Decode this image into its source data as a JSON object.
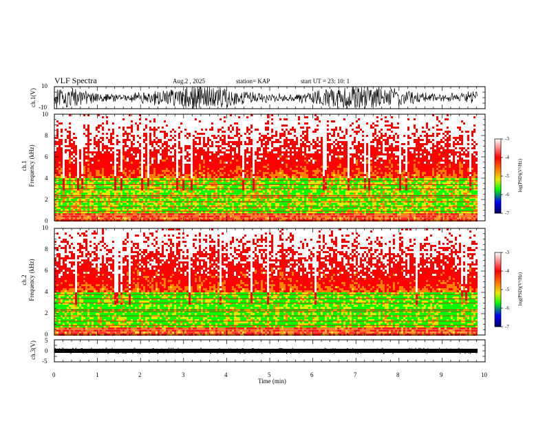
{
  "header": {
    "title": "VLF Spectra",
    "date": "Aug.2  , 2025",
    "station": "station= KAP",
    "start": "start  UT  =   23: 10: 1"
  },
  "chart_data": [
    {
      "type": "line",
      "panel": "ch1-waveform",
      "ylabel": "ch.1(V)",
      "ylim": [
        -10,
        10
      ],
      "yticks": [
        "10",
        "-10"
      ],
      "x_range_min": [
        0,
        10
      ]
    },
    {
      "type": "heatmap",
      "panel": "ch1-spectrogram",
      "ylabel": "ch.1\nFrequency  (kHz)",
      "ylabel_top": "ch.1",
      "ylabel_bottom": "Frequency  (kHz)",
      "ylim": [
        0,
        10
      ],
      "yticks": [
        "0",
        "2",
        "4",
        "6",
        "8",
        "10"
      ],
      "data_x_range_min": [
        0,
        9.85
      ],
      "colorbar": {
        "label": "log(PSD)(V²/Hz)",
        "range": [
          -7,
          -3
        ],
        "ticks": [
          "-3",
          "-4",
          "-5",
          "-6",
          "-7"
        ]
      }
    },
    {
      "type": "heatmap",
      "panel": "ch2-spectrogram",
      "ylabel_top": "ch.2",
      "ylabel_bottom": "Frequency  (kHz)",
      "ylim": [
        0,
        10
      ],
      "yticks": [
        "0",
        "2",
        "4",
        "6",
        "8",
        "10"
      ],
      "data_x_range_min": [
        0,
        9.85
      ],
      "colorbar": {
        "label": "log(PSD)(V²/Hz)",
        "range": [
          -7,
          -3
        ],
        "ticks": [
          "-3",
          "-4",
          "-5",
          "-6",
          "-7"
        ]
      }
    },
    {
      "type": "line",
      "panel": "ch3-waveform",
      "ylabel": "ch.3(V)",
      "ylim": [
        -5,
        5
      ],
      "yticks": [
        "5",
        "0",
        "-5"
      ],
      "xlabel": "Time  (min)",
      "xlim": [
        0,
        10
      ],
      "xticks": [
        "0",
        "1",
        "2",
        "3",
        "4",
        "5",
        "6",
        "7",
        "8",
        "9",
        "10"
      ]
    }
  ],
  "colors": {
    "white": "#ffffff",
    "red": "#ff0000",
    "orange": "#ff8000",
    "yellow": "#e8e800",
    "green": "#00ff00",
    "blue": "#0000ff",
    "navy": "#000060"
  }
}
